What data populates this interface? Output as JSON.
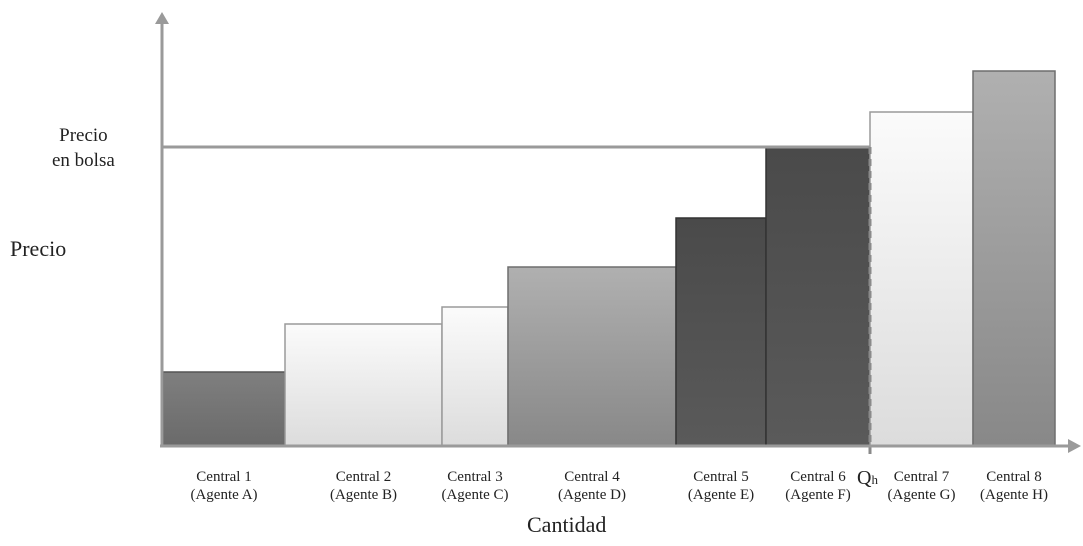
{
  "chart_data": {
    "type": "bar",
    "ylabel": "Precio",
    "xlabel": "Cantidad",
    "price_line_label_1": "Precio",
    "price_line_label_2": "en bolsa",
    "qh_label": "Q",
    "qh_subscript": "h",
    "centrals": [
      {
        "name": "Central 1",
        "agent": "(Agente A)",
        "width": 122,
        "height": 74,
        "shade": "dark"
      },
      {
        "name": "Central 2",
        "agent": "(Agente B)",
        "width": 157,
        "height": 122,
        "shade": "light"
      },
      {
        "name": "Central 3",
        "agent": "(Agente C)",
        "width": 66,
        "height": 139,
        "shade": "light"
      },
      {
        "name": "Central 4",
        "agent": "(Agente D)",
        "width": 168,
        "height": 179,
        "shade": "mid"
      },
      {
        "name": "Central 5",
        "agent": "(Agente E)",
        "width": 90,
        "height": 228,
        "shade": "darker"
      },
      {
        "name": "Central 6",
        "agent": "(Agente F)",
        "width": 104,
        "height": 299,
        "shade": "darker"
      },
      {
        "name": "Central 7",
        "agent": "(Agente G)",
        "width": 103,
        "height": 334,
        "shade": "light"
      },
      {
        "name": "Central 8",
        "agent": "(Agente H)",
        "width": 82,
        "height": 375,
        "shade": "mid"
      }
    ],
    "market_price": 299,
    "qh_index": 6
  }
}
